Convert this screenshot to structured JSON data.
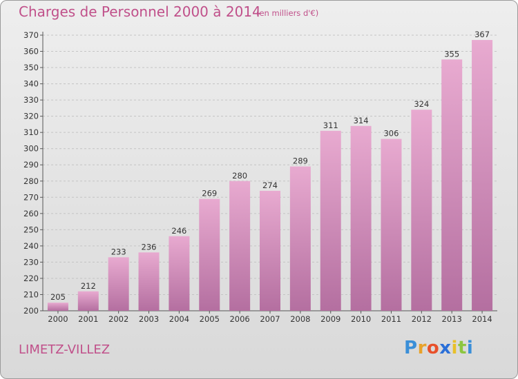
{
  "title": "Charges de Personnel 2000 à 2014",
  "subtitle": "(en milliers d'€)",
  "town": "LIMETZ-VILLEZ",
  "brand": {
    "letters": [
      "P",
      "r",
      "o",
      "x",
      "i",
      "t",
      "i"
    ],
    "colors": [
      "#3a8fd8",
      "#e8a22a",
      "#e8502a",
      "#2a6fd8",
      "#e8c02a",
      "#8cc63f",
      "#3a8fd8"
    ]
  },
  "colors": {
    "bar_top": "#e8aad0",
    "bar_bottom": "#b46fa0",
    "title": "#c0508a"
  },
  "chart_data": {
    "type": "bar",
    "categories": [
      "2000",
      "2001",
      "2002",
      "2003",
      "2004",
      "2005",
      "2006",
      "2007",
      "2008",
      "2009",
      "2010",
      "2011",
      "2012",
      "2013",
      "2014"
    ],
    "values": [
      205,
      212,
      233,
      236,
      246,
      269,
      280,
      274,
      289,
      311,
      314,
      306,
      324,
      355,
      367
    ],
    "ylim": [
      200,
      370
    ],
    "yticks": [
      200,
      210,
      220,
      230,
      240,
      250,
      260,
      270,
      280,
      290,
      300,
      310,
      320,
      330,
      340,
      350,
      360,
      370
    ],
    "grid": true
  }
}
